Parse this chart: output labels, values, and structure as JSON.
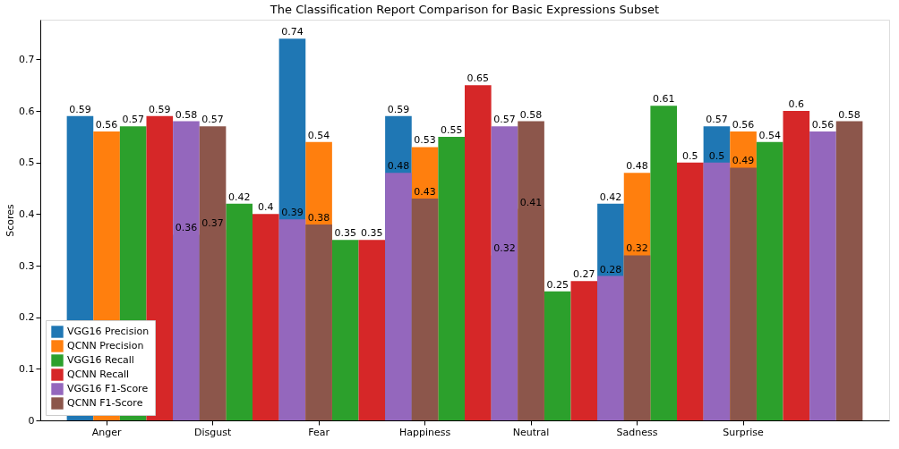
{
  "chart_data": {
    "type": "bar",
    "title": "The Classification Report Comparison for Basic Expressions Subset",
    "ylabel": "Scores",
    "categories": [
      null,
      "Anger",
      null,
      null,
      null,
      "Disgust",
      null,
      null,
      null,
      "Fear",
      null,
      null,
      null,
      "Happiness",
      null,
      null,
      null,
      "Neutral",
      null,
      null,
      null,
      "Sadness",
      null,
      null,
      null,
      "Surprise",
      null,
      null,
      null,
      null
    ],
    "series": [
      {
        "name": "VGG16 Precision",
        "color": "#1f77b4",
        "values": [
          0.59,
          null,
          null,
          null,
          0.36,
          null,
          null,
          null,
          0.74,
          null,
          null,
          null,
          0.59,
          null,
          null,
          null,
          0.32,
          null,
          null,
          null,
          0.42,
          null,
          null,
          null,
          0.57,
          null,
          null,
          null,
          null,
          null
        ]
      },
      {
        "name": "QCNN Precision",
        "color": "#ff7f0e",
        "values": [
          null,
          0.56,
          null,
          null,
          null,
          0.37,
          null,
          null,
          null,
          0.54,
          null,
          null,
          null,
          0.53,
          null,
          null,
          null,
          0.41,
          null,
          null,
          null,
          0.48,
          null,
          null,
          null,
          0.56,
          null,
          null,
          null,
          null
        ]
      },
      {
        "name": "VGG16 Recall",
        "color": "#2ca02c",
        "values": [
          null,
          null,
          0.57,
          null,
          null,
          null,
          0.42,
          null,
          null,
          null,
          0.35,
          null,
          null,
          null,
          0.55,
          null,
          null,
          null,
          0.25,
          null,
          null,
          null,
          0.61,
          null,
          null,
          null,
          0.54,
          null,
          null,
          null
        ]
      },
      {
        "name": "QCNN Recall",
        "color": "#d62728",
        "values": [
          null,
          null,
          null,
          0.59,
          null,
          null,
          null,
          0.4,
          null,
          null,
          null,
          0.35,
          null,
          null,
          null,
          0.65,
          null,
          null,
          null,
          0.27,
          null,
          null,
          null,
          0.5,
          null,
          null,
          null,
          0.6,
          null,
          null
        ]
      },
      {
        "name": "VGG16 F1-Score",
        "color": "#9467bd",
        "values": [
          null,
          null,
          null,
          null,
          0.58,
          null,
          null,
          null,
          0.39,
          null,
          null,
          null,
          0.48,
          null,
          null,
          null,
          0.57,
          null,
          null,
          null,
          0.28,
          null,
          null,
          null,
          0.5,
          null,
          null,
          null,
          0.56,
          null
        ]
      },
      {
        "name": "QCNN F1-Score",
        "color": "#8c564b",
        "values": [
          null,
          null,
          null,
          null,
          null,
          0.57,
          null,
          null,
          null,
          0.38,
          null,
          null,
          null,
          0.43,
          null,
          null,
          null,
          0.58,
          null,
          null,
          null,
          0.32,
          null,
          null,
          null,
          0.49,
          null,
          null,
          null,
          0.58
        ]
      }
    ],
    "ylim": [
      0,
      0.777
    ],
    "yticks": [
      0,
      0.1,
      0.2,
      0.3,
      0.4,
      0.5,
      0.6,
      0.7
    ],
    "data_labels": true,
    "legend": "bottom left",
    "grid": false
  }
}
